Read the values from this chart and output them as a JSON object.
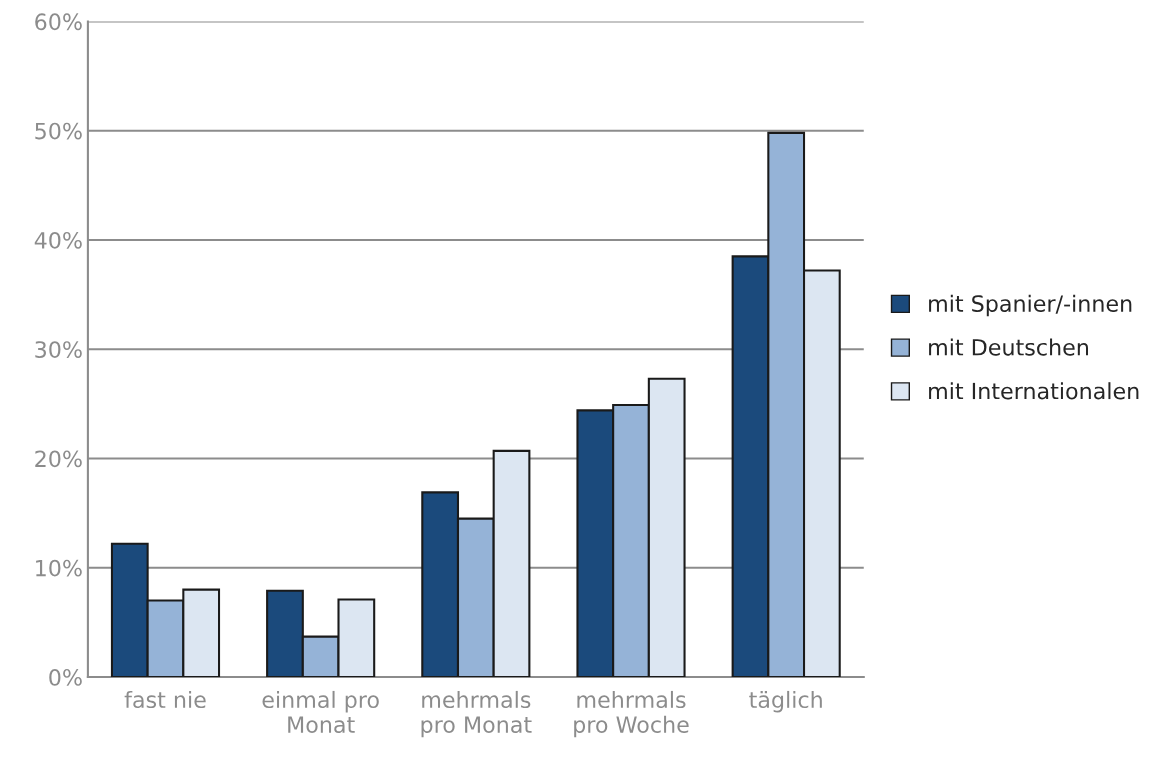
{
  "chart_data": {
    "type": "bar",
    "categories": [
      "fast nie",
      "einmal pro\nMonat",
      "mehrmals\npro Monat",
      "mehrmals\npro Woche",
      "täglich"
    ],
    "series": [
      {
        "name": "mit Spanier/-innen",
        "color": "#1b4a7c",
        "values": [
          12.2,
          7.9,
          16.9,
          24.4,
          38.5
        ]
      },
      {
        "name": "mit Deutschen",
        "color": "#95b3d7",
        "values": [
          7.0,
          3.7,
          14.5,
          24.9,
          49.8
        ]
      },
      {
        "name": "mit Internationalen",
        "color": "#dce6f2",
        "values": [
          8.0,
          7.1,
          20.7,
          27.3,
          37.2
        ]
      }
    ],
    "ylim": [
      0,
      60
    ],
    "yticks": [
      {
        "value": 0,
        "label": "0%"
      },
      {
        "value": 10,
        "label": "10%"
      },
      {
        "value": 20,
        "label": "20%"
      },
      {
        "value": 30,
        "label": "30%"
      },
      {
        "value": 40,
        "label": "40%"
      },
      {
        "value": 50,
        "label": "50%"
      },
      {
        "value": 60,
        "label": "60%"
      }
    ],
    "grid": "y",
    "legend": "right"
  }
}
